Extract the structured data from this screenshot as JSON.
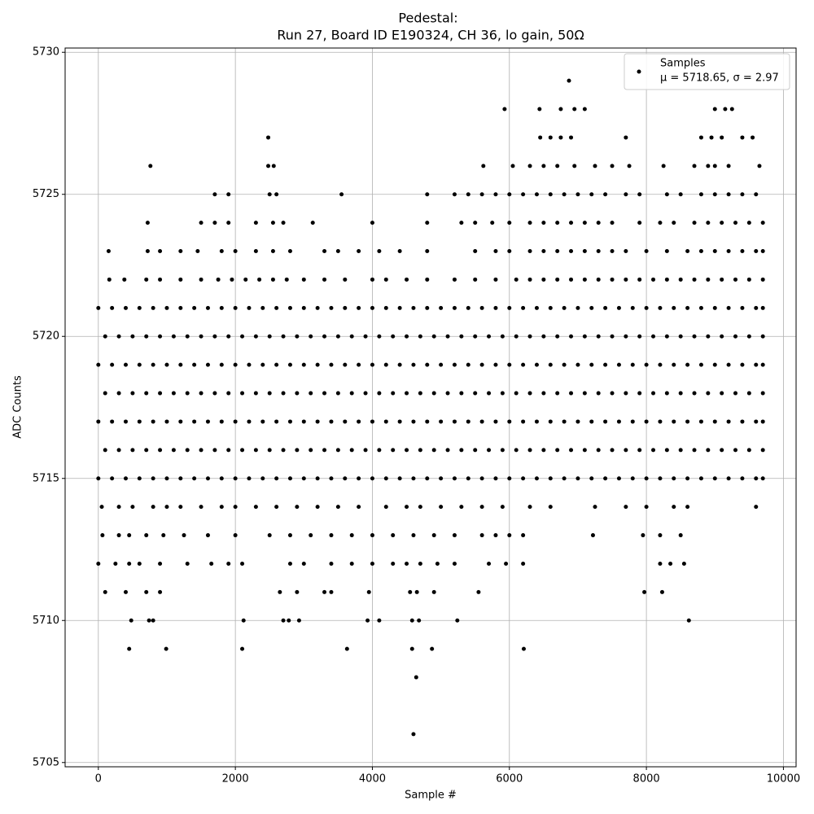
{
  "chart_data": {
    "type": "scatter",
    "title": "Pedestal:",
    "subtitle": "Run 27, Board ID E190324, CH 36, lo gain, 50Ω",
    "x_label": "Sample #",
    "y_label": "ADC Counts",
    "legend": {
      "label": "Samples",
      "stats": "μ = 5718.65, σ = 2.97",
      "position": "upper right"
    },
    "color": "#000000",
    "grid": true,
    "xlim": [
      -485,
      10185
    ],
    "ylim": [
      5704.85,
      5730.15
    ],
    "xticks": [
      0,
      2000,
      4000,
      6000,
      8000,
      10000
    ],
    "yticks": [
      5705,
      5710,
      5715,
      5720,
      5725,
      5730
    ],
    "x": [
      0,
      200,
      400,
      600,
      800,
      1000,
      1200,
      1400,
      1600,
      1800,
      2000,
      2200,
      2400,
      2600,
      2800,
      3000,
      3200,
      3400,
      3600,
      3800,
      4000,
      4200,
      4400,
      4600,
      4800,
      5000,
      5200,
      5400,
      5600,
      5800,
      6000,
      6200,
      6400,
      6600,
      6800,
      7000,
      7200,
      7400,
      7600,
      7800,
      8000,
      8200,
      8400,
      8600,
      8800,
      9000,
      9200,
      9400,
      9600,
      9700,
      0,
      200,
      400,
      600,
      800,
      1000,
      1200,
      1400,
      1600,
      1800,
      2000,
      2200,
      2400,
      2600,
      2800,
      3000,
      3200,
      3400,
      3600,
      3800,
      4000,
      4200,
      4400,
      4600,
      4800,
      5000,
      5200,
      5400,
      5600,
      5800,
      6000,
      6200,
      6400,
      6600,
      6800,
      7000,
      7200,
      7400,
      7600,
      7800,
      8000,
      8200,
      8400,
      8600,
      8800,
      9000,
      9200,
      9400,
      9600,
      9700,
      0,
      200,
      400,
      600,
      800,
      1000,
      1200,
      1400,
      1600,
      1800,
      2000,
      2200,
      2400,
      2600,
      2800,
      3000,
      3200,
      3400,
      3600,
      3800,
      4000,
      4200,
      4400,
      4600,
      4800,
      5000,
      5200,
      5400,
      5600,
      5800,
      6000,
      6200,
      6400,
      6600,
      6800,
      7000,
      7200,
      7400,
      7600,
      7800,
      8000,
      8200,
      8400,
      8600,
      8800,
      9000,
      9200,
      9400,
      9600,
      9700,
      0,
      200,
      400,
      600,
      800,
      1000,
      1200,
      1400,
      1600,
      1800,
      2000,
      2200,
      2400,
      2600,
      2800,
      3000,
      3200,
      3400,
      3600,
      3800,
      4000,
      4200,
      4400,
      4600,
      4800,
      5000,
      5200,
      5400,
      5600,
      5800,
      6000,
      6200,
      6400,
      6600,
      6800,
      7000,
      7200,
      7400,
      7600,
      7800,
      8000,
      8200,
      8400,
      8600,
      8800,
      9000,
      9200,
      9400,
      9600,
      9700,
      100,
      300,
      500,
      700,
      900,
      1100,
      1300,
      1500,
      1700,
      1900,
      2100,
      2300,
      2500,
      2700,
      2900,
      3100,
      3300,
      3500,
      3700,
      3900,
      4100,
      4300,
      4500,
      4700,
      4900,
      5100,
      5300,
      5500,
      5700,
      5900,
      6100,
      6300,
      6500,
      6700,
      6900,
      7100,
      7300,
      7500,
      7700,
      7900,
      8100,
      8300,
      8500,
      8700,
      8900,
      9100,
      9300,
      9500,
      9700,
      100,
      300,
      500,
      700,
      900,
      1100,
      1300,
      1500,
      1700,
      1900,
      2100,
      2300,
      2500,
      2700,
      2900,
      3100,
      3300,
      3500,
      3700,
      3900,
      4100,
      4300,
      4500,
      4700,
      4900,
      5100,
      5300,
      5500,
      5700,
      5900,
      6100,
      6300,
      6500,
      6700,
      6900,
      7100,
      7300,
      7500,
      7700,
      7900,
      8100,
      8300,
      8500,
      8700,
      8900,
      9100,
      9300,
      9500,
      9700,
      100,
      300,
      500,
      700,
      900,
      1100,
      1300,
      1500,
      1700,
      1900,
      2100,
      2300,
      2500,
      2700,
      2900,
      3100,
      3300,
      3500,
      3700,
      3900,
      4100,
      4300,
      4500,
      4700,
      4900,
      5100,
      5300,
      5500,
      5700,
      5900,
      6100,
      6300,
      6500,
      6700,
      6900,
      7100,
      7300,
      7500,
      7700,
      7900,
      8100,
      8300,
      8500,
      8700,
      8900,
      9100,
      9300,
      9500,
      9700,
      160,
      380,
      700,
      900,
      1200,
      1500,
      1750,
      1950,
      2150,
      2350,
      2550,
      2750,
      3000,
      3300,
      3600,
      4000,
      4200,
      4500,
      4800,
      5200,
      5500,
      5800,
      6100,
      6300,
      6500,
      6700,
      6900,
      7100,
      7300,
      7500,
      7700,
      7900,
      8100,
      8300,
      8500,
      8700,
      8900,
      9100,
      9300,
      9500,
      9700,
      150,
      720,
      900,
      1200,
      1450,
      1800,
      2000,
      2300,
      2550,
      2800,
      3300,
      3500,
      3800,
      4100,
      4400,
      4800,
      5500,
      5800,
      6000,
      6300,
      6500,
      6700,
      6900,
      7100,
      7300,
      7500,
      7700,
      8000,
      8300,
      8600,
      8800,
      9000,
      9200,
      9400,
      9600,
      9700,
      720,
      1500,
      1700,
      1900,
      2300,
      2550,
      2700,
      3130,
      4000,
      4800,
      5300,
      5500,
      5750,
      6000,
      6300,
      6500,
      6700,
      6900,
      7100,
      7300,
      7500,
      7900,
      8200,
      8400,
      8700,
      8900,
      9100,
      9300,
      9500,
      9700,
      1700,
      1900,
      2500,
      2600,
      3550,
      4800,
      5200,
      5400,
      5600,
      5800,
      6000,
      6200,
      6400,
      6600,
      6800,
      7000,
      7200,
      7400,
      7700,
      7900,
      8300,
      8500,
      8800,
      9000,
      9200,
      9400,
      9600,
      760,
      2480,
      2560,
      5620,
      6050,
      6300,
      6500,
      6700,
      6950,
      7250,
      7500,
      7750,
      8250,
      8700,
      8900,
      9000,
      9200,
      9650,
      2480,
      6450,
      6600,
      6750,
      6900,
      7700,
      8800,
      8950,
      9100,
      9400,
      9550,
      5930,
      6440,
      6750,
      6950,
      7100,
      9000,
      9150,
      9250,
      6870,
      50,
      300,
      500,
      800,
      1000,
      1200,
      1500,
      1800,
      2000,
      2300,
      2600,
      2900,
      3200,
      3500,
      3800,
      4200,
      4500,
      4700,
      5000,
      5300,
      5600,
      5900,
      6300,
      6600,
      7250,
      7700,
      8000,
      8400,
      8600,
      9600,
      60,
      300,
      450,
      700,
      950,
      1250,
      1600,
      2000,
      2500,
      2800,
      3100,
      3400,
      3700,
      4000,
      4300,
      4600,
      4900,
      5200,
      5600,
      5800,
      6000,
      6200,
      7220,
      7950,
      8200,
      8500,
      0,
      250,
      450,
      600,
      900,
      1300,
      1650,
      1900,
      2100,
      2800,
      3000,
      3400,
      3700,
      4000,
      4300,
      4500,
      4700,
      4950,
      5200,
      5700,
      5950,
      6200,
      8200,
      8350,
      8550,
      100,
      400,
      700,
      900,
      2650,
      2900,
      3300,
      3400,
      3950,
      4550,
      4650,
      4900,
      5550,
      7970,
      8230,
      480,
      740,
      800,
      2120,
      2700,
      2780,
      2930,
      3930,
      4100,
      4580,
      4680,
      5240,
      8620,
      450,
      990,
      2100,
      3630,
      4580,
      4870,
      6210,
      4640,
      4600
    ],
    "values": [
      5721,
      5721,
      5721,
      5721,
      5721,
      5721,
      5721,
      5721,
      5721,
      5721,
      5721,
      5721,
      5721,
      5721,
      5721,
      5721,
      5721,
      5721,
      5721,
      5721,
      5721,
      5721,
      5721,
      5721,
      5721,
      5721,
      5721,
      5721,
      5721,
      5721,
      5721,
      5721,
      5721,
      5721,
      5721,
      5721,
      5721,
      5721,
      5721,
      5721,
      5721,
      5721,
      5721,
      5721,
      5721,
      5721,
      5721,
      5721,
      5721,
      5721,
      5719,
      5719,
      5719,
      5719,
      5719,
      5719,
      5719,
      5719,
      5719,
      5719,
      5719,
      5719,
      5719,
      5719,
      5719,
      5719,
      5719,
      5719,
      5719,
      5719,
      5719,
      5719,
      5719,
      5719,
      5719,
      5719,
      5719,
      5719,
      5719,
      5719,
      5719,
      5719,
      5719,
      5719,
      5719,
      5719,
      5719,
      5719,
      5719,
      5719,
      5719,
      5719,
      5719,
      5719,
      5719,
      5719,
      5719,
      5719,
      5719,
      5719,
      5717,
      5717,
      5717,
      5717,
      5717,
      5717,
      5717,
      5717,
      5717,
      5717,
      5717,
      5717,
      5717,
      5717,
      5717,
      5717,
      5717,
      5717,
      5717,
      5717,
      5717,
      5717,
      5717,
      5717,
      5717,
      5717,
      5717,
      5717,
      5717,
      5717,
      5717,
      5717,
      5717,
      5717,
      5717,
      5717,
      5717,
      5717,
      5717,
      5717,
      5717,
      5717,
      5717,
      5717,
      5717,
      5717,
      5717,
      5717,
      5717,
      5717,
      5715,
      5715,
      5715,
      5715,
      5715,
      5715,
      5715,
      5715,
      5715,
      5715,
      5715,
      5715,
      5715,
      5715,
      5715,
      5715,
      5715,
      5715,
      5715,
      5715,
      5715,
      5715,
      5715,
      5715,
      5715,
      5715,
      5715,
      5715,
      5715,
      5715,
      5715,
      5715,
      5715,
      5715,
      5715,
      5715,
      5715,
      5715,
      5715,
      5715,
      5715,
      5715,
      5715,
      5715,
      5715,
      5715,
      5715,
      5715,
      5715,
      5715,
      5720,
      5720,
      5720,
      5720,
      5720,
      5720,
      5720,
      5720,
      5720,
      5720,
      5720,
      5720,
      5720,
      5720,
      5720,
      5720,
      5720,
      5720,
      5720,
      5720,
      5720,
      5720,
      5720,
      5720,
      5720,
      5720,
      5720,
      5720,
      5720,
      5720,
      5720,
      5720,
      5720,
      5720,
      5720,
      5720,
      5720,
      5720,
      5720,
      5720,
      5720,
      5720,
      5720,
      5720,
      5720,
      5720,
      5720,
      5720,
      5720,
      5718,
      5718,
      5718,
      5718,
      5718,
      5718,
      5718,
      5718,
      5718,
      5718,
      5718,
      5718,
      5718,
      5718,
      5718,
      5718,
      5718,
      5718,
      5718,
      5718,
      5718,
      5718,
      5718,
      5718,
      5718,
      5718,
      5718,
      5718,
      5718,
      5718,
      5718,
      5718,
      5718,
      5718,
      5718,
      5718,
      5718,
      5718,
      5718,
      5718,
      5718,
      5718,
      5718,
      5718,
      5718,
      5718,
      5718,
      5718,
      5718,
      5716,
      5716,
      5716,
      5716,
      5716,
      5716,
      5716,
      5716,
      5716,
      5716,
      5716,
      5716,
      5716,
      5716,
      5716,
      5716,
      5716,
      5716,
      5716,
      5716,
      5716,
      5716,
      5716,
      5716,
      5716,
      5716,
      5716,
      5716,
      5716,
      5716,
      5716,
      5716,
      5716,
      5716,
      5716,
      5716,
      5716,
      5716,
      5716,
      5716,
      5716,
      5716,
      5716,
      5716,
      5716,
      5716,
      5716,
      5716,
      5716,
      5722,
      5722,
      5722,
      5722,
      5722,
      5722,
      5722,
      5722,
      5722,
      5722,
      5722,
      5722,
      5722,
      5722,
      5722,
      5722,
      5722,
      5722,
      5722,
      5722,
      5722,
      5722,
      5722,
      5722,
      5722,
      5722,
      5722,
      5722,
      5722,
      5722,
      5722,
      5722,
      5722,
      5722,
      5722,
      5722,
      5722,
      5722,
      5722,
      5722,
      5722,
      5723,
      5723,
      5723,
      5723,
      5723,
      5723,
      5723,
      5723,
      5723,
      5723,
      5723,
      5723,
      5723,
      5723,
      5723,
      5723,
      5723,
      5723,
      5723,
      5723,
      5723,
      5723,
      5723,
      5723,
      5723,
      5723,
      5723,
      5723,
      5723,
      5723,
      5723,
      5723,
      5723,
      5723,
      5723,
      5723,
      5724,
      5724,
      5724,
      5724,
      5724,
      5724,
      5724,
      5724,
      5724,
      5724,
      5724,
      5724,
      5724,
      5724,
      5724,
      5724,
      5724,
      5724,
      5724,
      5724,
      5724,
      5724,
      5724,
      5724,
      5724,
      5724,
      5724,
      5724,
      5724,
      5724,
      5725,
      5725,
      5725,
      5725,
      5725,
      5725,
      5725,
      5725,
      5725,
      5725,
      5725,
      5725,
      5725,
      5725,
      5725,
      5725,
      5725,
      5725,
      5725,
      5725,
      5725,
      5725,
      5725,
      5725,
      5725,
      5725,
      5725,
      5726,
      5726,
      5726,
      5726,
      5726,
      5726,
      5726,
      5726,
      5726,
      5726,
      5726,
      5726,
      5726,
      5726,
      5726,
      5726,
      5726,
      5726,
      5727,
      5727,
      5727,
      5727,
      5727,
      5727,
      5727,
      5727,
      5727,
      5727,
      5727,
      5728,
      5728,
      5728,
      5728,
      5728,
      5728,
      5728,
      5728,
      5729,
      5714,
      5714,
      5714,
      5714,
      5714,
      5714,
      5714,
      5714,
      5714,
      5714,
      5714,
      5714,
      5714,
      5714,
      5714,
      5714,
      5714,
      5714,
      5714,
      5714,
      5714,
      5714,
      5714,
      5714,
      5714,
      5714,
      5714,
      5714,
      5714,
      5714,
      5713,
      5713,
      5713,
      5713,
      5713,
      5713,
      5713,
      5713,
      5713,
      5713,
      5713,
      5713,
      5713,
      5713,
      5713,
      5713,
      5713,
      5713,
      5713,
      5713,
      5713,
      5713,
      5713,
      5713,
      5713,
      5713,
      5712,
      5712,
      5712,
      5712,
      5712,
      5712,
      5712,
      5712,
      5712,
      5712,
      5712,
      5712,
      5712,
      5712,
      5712,
      5712,
      5712,
      5712,
      5712,
      5712,
      5712,
      5712,
      5712,
      5712,
      5712,
      5711,
      5711,
      5711,
      5711,
      5711,
      5711,
      5711,
      5711,
      5711,
      5711,
      5711,
      5711,
      5711,
      5711,
      5711,
      5710,
      5710,
      5710,
      5710,
      5710,
      5710,
      5710,
      5710,
      5710,
      5710,
      5710,
      5710,
      5710,
      5709,
      5709,
      5709,
      5709,
      5709,
      5709,
      5709,
      5708,
      5706
    ]
  }
}
